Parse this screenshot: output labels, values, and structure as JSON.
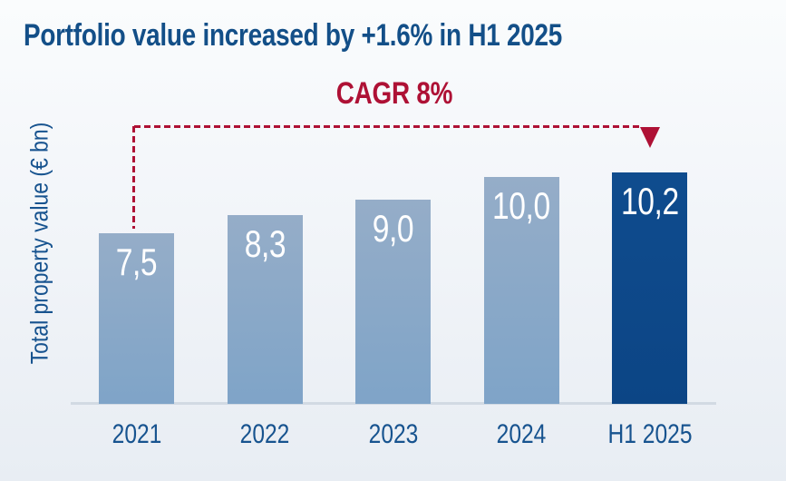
{
  "title": "Portfolio value increased by +1.6% in H1 2025",
  "y_axis_label": "Total property value (€ bn)",
  "cagr_label": "CAGR 8%",
  "colors": {
    "title_blue": "#134f88",
    "tick_blue": "#17538f",
    "accent_red": "#ae1135",
    "bar_light_top": "#95adc8",
    "bar_light_bottom": "#7fa4c8",
    "bar_dark": "#0d4989",
    "value_label_text": "#ffffff",
    "axis_line": "#d2dae3"
  },
  "chart_data": {
    "type": "bar",
    "categories": [
      "2021",
      "2022",
      "2023",
      "2024",
      "H1 2025"
    ],
    "values": [
      7.5,
      8.3,
      9.0,
      10.0,
      10.2
    ],
    "value_labels": [
      "7,5",
      "8,3",
      "9,0",
      "10,0",
      "10,2"
    ],
    "highlight_index": 4,
    "title": "Portfolio value increased by +1.6% in H1 2025",
    "xlabel": "",
    "ylabel": "Total property value (€ bn)",
    "ylim": [
      0,
      11
    ],
    "grid": false,
    "legend": "none",
    "annotation": {
      "label": "CAGR 8%",
      "from_category": "2021",
      "to_category": "H1 2025",
      "style": "dashed-arrow"
    }
  }
}
